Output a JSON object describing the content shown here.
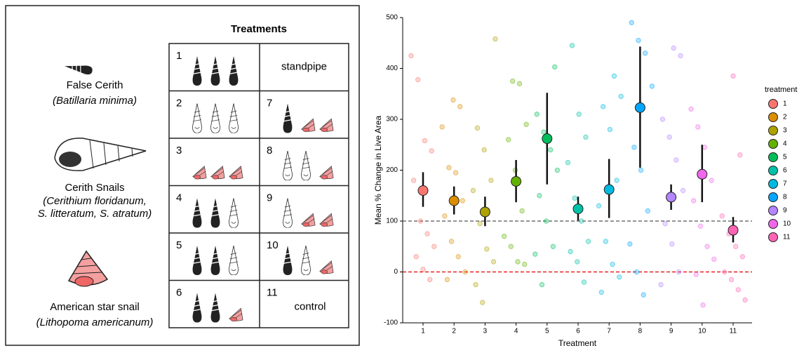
{
  "diagram": {
    "header": "Treatments",
    "species": [
      {
        "name": "False Cerith",
        "scientific": [
          "(Batillaria minima)"
        ]
      },
      {
        "name": "Cerith Snails",
        "scientific": [
          "(Cerithium floridanum,",
          "S. litteratum, S. atratum)"
        ]
      },
      {
        "name": "American star snail",
        "scientific": [
          "(Lithopoma americanum)"
        ]
      }
    ],
    "treatments": [
      {
        "number": "1",
        "label": "standpipe"
      },
      {
        "number": "2"
      },
      {
        "number": "3"
      },
      {
        "number": "4"
      },
      {
        "number": "5"
      },
      {
        "number": "6"
      },
      {
        "number": "7"
      },
      {
        "number": "8"
      },
      {
        "number": "9"
      },
      {
        "number": "10"
      },
      {
        "number": "11",
        "label": "control"
      }
    ]
  },
  "chart_data": {
    "type": "pointrange",
    "x_label": "Treatment",
    "y_label": "Mean % Change in Live Area",
    "legend_title": "treatment",
    "legend": "right",
    "categories": [
      "1",
      "2",
      "3",
      "4",
      "5",
      "6",
      "7",
      "8",
      "9",
      "10",
      "11"
    ],
    "colors": [
      "#F8766D",
      "#DB8E00",
      "#AEA200",
      "#64B200",
      "#00BD5C",
      "#00C1A7",
      "#00BADE",
      "#00A6FF",
      "#B385FF",
      "#EF67EB",
      "#FF63B6"
    ],
    "values": [
      160,
      140,
      118,
      178,
      262,
      124,
      162,
      323,
      147,
      192,
      82
    ],
    "lower": [
      128,
      113,
      90,
      137,
      172,
      101,
      106,
      205,
      122,
      137,
      58
    ],
    "upper": [
      196,
      168,
      148,
      220,
      352,
      148,
      222,
      443,
      172,
      250,
      108
    ],
    "points": [
      [
        425,
        378,
        258,
        238,
        180,
        100,
        75,
        50,
        30,
        5,
        -15
      ],
      [
        338,
        325,
        285,
        205,
        195,
        140,
        110,
        60,
        30,
        0,
        -15
      ],
      [
        458,
        283,
        240,
        180,
        160,
        95,
        45,
        20,
        -25,
        -60
      ],
      [
        375,
        370,
        290,
        260,
        200,
        120,
        70,
        50,
        20,
        15
      ],
      [
        403,
        310,
        275,
        240,
        200,
        150,
        100,
        50,
        35,
        -25
      ],
      [
        445,
        310,
        265,
        215,
        145,
        100,
        60,
        40,
        20,
        -20
      ],
      [
        385,
        345,
        325,
        280,
        180,
        130,
        60,
        15,
        -10,
        -40
      ],
      [
        490,
        455,
        430,
        365,
        245,
        200,
        120,
        55,
        0,
        -45
      ],
      [
        440,
        425,
        300,
        265,
        220,
        160,
        95,
        55,
        0,
        -25
      ],
      [
        320,
        285,
        245,
        180,
        140,
        90,
        50,
        25,
        -5,
        -65
      ],
      [
        385,
        230,
        110,
        75,
        50,
        30,
        0,
        -15,
        -35,
        -55
      ]
    ],
    "hlines": [
      {
        "value": 100,
        "color": "#555555"
      },
      {
        "value": 0,
        "color": "#e00000"
      }
    ],
    "ylim": [
      -100,
      500
    ],
    "yticks": [
      -100,
      0,
      100,
      200,
      300,
      400,
      500
    ]
  }
}
